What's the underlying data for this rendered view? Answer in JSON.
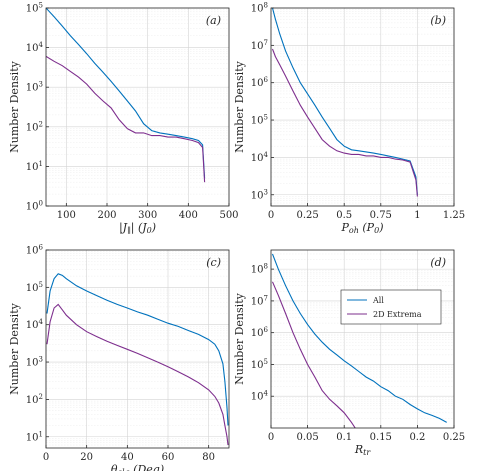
{
  "colors": {
    "all": "#0072BD",
    "extrema": "#7E2F8E"
  },
  "chart_data": [
    {
      "panel_label": "(a)",
      "type": "line",
      "xlabel": "|J_∥| (J_0)",
      "ylabel": "Number Density",
      "yscale": "log",
      "xlim": [
        50,
        500
      ],
      "ylim": [
        1,
        100000
      ],
      "xticks": [
        100,
        200,
        300,
        400,
        500
      ],
      "xticklabels": [
        "100",
        "200",
        "300",
        "400",
        "500"
      ],
      "yticks_exp": [
        0,
        1,
        2,
        3,
        4,
        5
      ],
      "grid": true,
      "series": [
        {
          "color_key": "all",
          "x": [
            50,
            70,
            90,
            110,
            130,
            150,
            170,
            190,
            210,
            230,
            250,
            270,
            290,
            310,
            330,
            350,
            370,
            390,
            410,
            425,
            435,
            440
          ],
          "y": [
            100000,
            60000,
            35000,
            20000,
            12000,
            7000,
            4000,
            2400,
            1400,
            800,
            450,
            250,
            120,
            80,
            70,
            65,
            60,
            55,
            50,
            45,
            35,
            5
          ]
        },
        {
          "color_key": "extrema",
          "x": [
            50,
            70,
            90,
            110,
            130,
            150,
            170,
            190,
            210,
            230,
            250,
            270,
            290,
            310,
            330,
            350,
            370,
            390,
            410,
            425,
            435,
            440
          ],
          "y": [
            6000,
            4500,
            3500,
            2500,
            1800,
            1200,
            700,
            450,
            300,
            150,
            90,
            70,
            70,
            60,
            60,
            55,
            55,
            50,
            45,
            40,
            30,
            4
          ]
        }
      ]
    },
    {
      "panel_label": "(b)",
      "type": "line",
      "xlabel": "P_oh (P_0)",
      "ylabel": "Number Density",
      "yscale": "log",
      "xlim": [
        0,
        1.25
      ],
      "ylim": [
        500,
        100000000
      ],
      "xticks": [
        0,
        0.25,
        0.5,
        0.75,
        1,
        1.25
      ],
      "xticklabels": [
        "0",
        "0.25",
        "0.5",
        "0.75",
        "1",
        "1.25"
      ],
      "yticks_exp": [
        3,
        4,
        5,
        6,
        7,
        8
      ],
      "grid": true,
      "series": [
        {
          "color_key": "all",
          "x": [
            0.01,
            0.03,
            0.06,
            0.1,
            0.15,
            0.2,
            0.25,
            0.3,
            0.35,
            0.4,
            0.45,
            0.5,
            0.55,
            0.6,
            0.65,
            0.7,
            0.75,
            0.8,
            0.85,
            0.9,
            0.95,
            0.99,
            1.0
          ],
          "y": [
            100000000,
            50000000,
            20000000,
            7000000,
            2500000,
            1000000,
            500000,
            250000,
            120000,
            60000,
            30000,
            20000,
            16000,
            15000,
            14000,
            13000,
            12000,
            11000,
            10000,
            9000,
            8000,
            3000,
            1000
          ]
        },
        {
          "color_key": "extrema",
          "x": [
            0.01,
            0.03,
            0.06,
            0.1,
            0.15,
            0.2,
            0.25,
            0.3,
            0.35,
            0.4,
            0.45,
            0.5,
            0.55,
            0.6,
            0.65,
            0.7,
            0.75,
            0.8,
            0.85,
            0.9,
            0.95,
            0.99,
            1.0
          ],
          "y": [
            8000000,
            5000000,
            3000000,
            1500000,
            600000,
            250000,
            120000,
            60000,
            30000,
            20000,
            15000,
            13000,
            12000,
            12000,
            11000,
            11000,
            10000,
            10000,
            9000,
            8500,
            7500,
            2500,
            900
          ]
        }
      ]
    },
    {
      "panel_label": "(c)",
      "type": "line",
      "xlabel": "θ_clg (Deg)",
      "ylabel": "Number Density",
      "yscale": "log",
      "xlim": [
        0,
        90
      ],
      "ylim": [
        5,
        1000000
      ],
      "xticks": [
        0,
        20,
        40,
        60,
        80
      ],
      "xticklabels": [
        "0",
        "20",
        "40",
        "60",
        "80"
      ],
      "yticks_exp": [
        1,
        2,
        3,
        4,
        5,
        6
      ],
      "grid": true,
      "series": [
        {
          "color_key": "all",
          "x": [
            0.5,
            2,
            4,
            6,
            8,
            10,
            15,
            20,
            25,
            30,
            35,
            40,
            45,
            50,
            55,
            60,
            65,
            70,
            75,
            80,
            83,
            85,
            87,
            88,
            89,
            89.5
          ],
          "y": [
            20000,
            80000,
            170000,
            230000,
            210000,
            170000,
            110000,
            80000,
            60000,
            45000,
            35000,
            28000,
            22000,
            18000,
            14000,
            11000,
            9000,
            7000,
            5500,
            4000,
            3000,
            2000,
            900,
            300,
            60,
            20
          ]
        },
        {
          "color_key": "extrema",
          "x": [
            0.5,
            2,
            4,
            6,
            8,
            10,
            15,
            20,
            25,
            30,
            35,
            40,
            45,
            50,
            55,
            60,
            65,
            70,
            75,
            80,
            83,
            85,
            87,
            88,
            89,
            89.5
          ],
          "y": [
            3000,
            12000,
            28000,
            35000,
            25000,
            18000,
            10000,
            6500,
            4800,
            3600,
            2800,
            2200,
            1700,
            1300,
            1000,
            750,
            550,
            400,
            280,
            180,
            120,
            80,
            40,
            20,
            10,
            6
          ]
        }
      ]
    },
    {
      "panel_label": "(d)",
      "type": "line",
      "xlabel": "R_tr",
      "ylabel": "Number Density",
      "yscale": "log",
      "xlim": [
        0,
        0.25
      ],
      "ylim": [
        1000,
        400000000
      ],
      "xticks": [
        0,
        0.05,
        0.1,
        0.15,
        0.2,
        0.25
      ],
      "xticklabels": [
        "0",
        "0.05",
        "0.1",
        "0.15",
        "0.2",
        "0.25"
      ],
      "yticks_exp": [
        4,
        5,
        6,
        7,
        8
      ],
      "grid": true,
      "legend": {
        "placement": "top-right",
        "entries": [
          "All",
          "2D Extrema"
        ]
      },
      "series": [
        {
          "name": "All",
          "color_key": "all",
          "x": [
            0.002,
            0.01,
            0.02,
            0.03,
            0.04,
            0.05,
            0.06,
            0.07,
            0.08,
            0.09,
            0.1,
            0.11,
            0.12,
            0.13,
            0.14,
            0.15,
            0.16,
            0.17,
            0.18,
            0.19,
            0.2,
            0.21,
            0.22,
            0.23,
            0.24
          ],
          "y": [
            300000000,
            100000000,
            30000000,
            10000000,
            4000000,
            1800000,
            900000,
            500000,
            300000,
            200000,
            130000,
            90000,
            60000,
            40000,
            30000,
            20000,
            15000,
            10000,
            8000,
            5500,
            4000,
            3000,
            2500,
            2000,
            1500
          ]
        },
        {
          "name": "2D Extrema",
          "color_key": "extrema",
          "x": [
            0.002,
            0.01,
            0.02,
            0.03,
            0.04,
            0.05,
            0.06,
            0.07,
            0.08,
            0.09,
            0.1,
            0.11,
            0.115,
            0.12
          ],
          "y": [
            40000000,
            15000000,
            4000000,
            1000000,
            300000,
            100000,
            40000,
            15000,
            8000,
            5000,
            3000,
            1500,
            1000,
            800
          ]
        }
      ]
    }
  ]
}
